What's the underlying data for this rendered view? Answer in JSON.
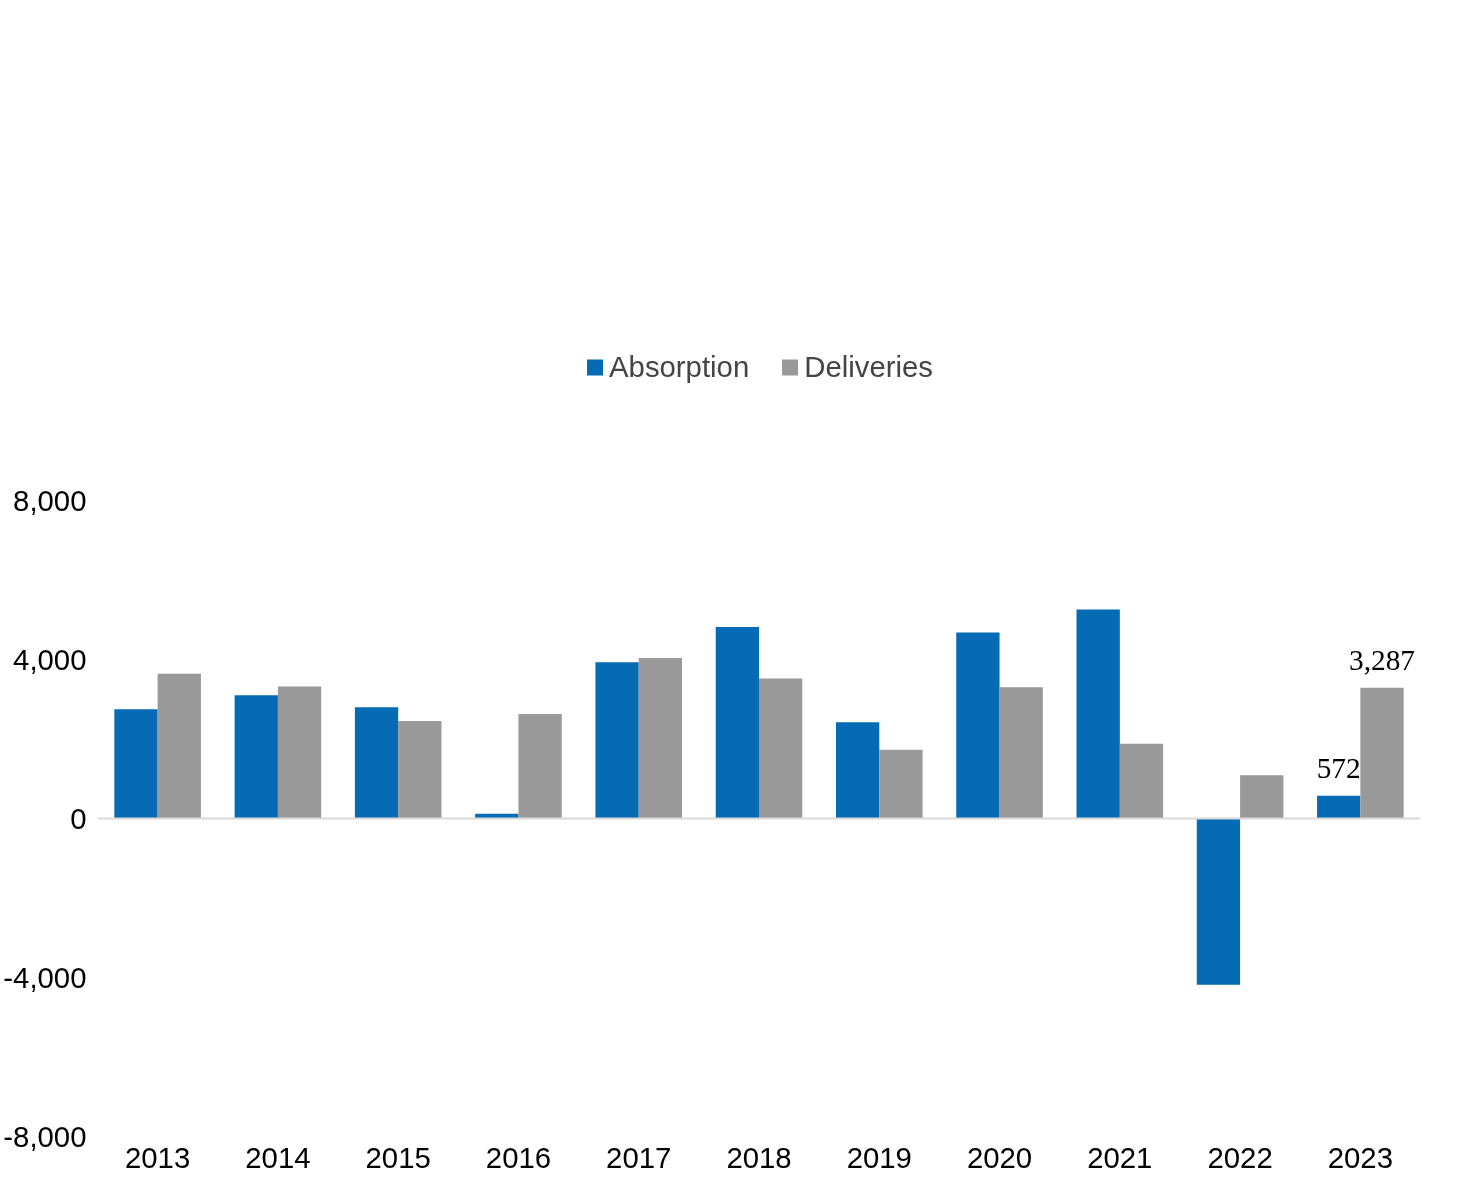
{
  "chart_data": {
    "type": "bar",
    "categories": [
      "2013",
      "2014",
      "2015",
      "2016",
      "2017",
      "2018",
      "2019",
      "2020",
      "2021",
      "2022",
      "2023"
    ],
    "series": [
      {
        "name": "Absorption",
        "color": "#046bb4",
        "values": [
          2750,
          3100,
          2800,
          120,
          3930,
          4820,
          2420,
          4680,
          5260,
          -4180,
          572
        ],
        "value_labels": [
          null,
          null,
          null,
          null,
          null,
          null,
          null,
          null,
          null,
          null,
          "572"
        ]
      },
      {
        "name": "Deliveries",
        "color": "#999999",
        "values": [
          3640,
          3320,
          2450,
          2630,
          4040,
          3520,
          1730,
          3300,
          1880,
          1090,
          3287
        ],
        "value_labels": [
          null,
          null,
          null,
          null,
          null,
          null,
          null,
          null,
          null,
          null,
          "3,287"
        ]
      }
    ],
    "ylim": [
      -8000,
      8000
    ],
    "yticks": [
      {
        "value": -8000,
        "label": "-8,000"
      },
      {
        "value": -4000,
        "label": "-4,000"
      },
      0,
      {
        "value": 4000,
        "label": "4,000"
      },
      {
        "value": 8000,
        "label": "8,000"
      }
    ],
    "ref_lines": [
      {
        "axis": "y",
        "value": 0,
        "color": "#d9d9d9"
      }
    ],
    "grid": false,
    "legend": "top"
  }
}
